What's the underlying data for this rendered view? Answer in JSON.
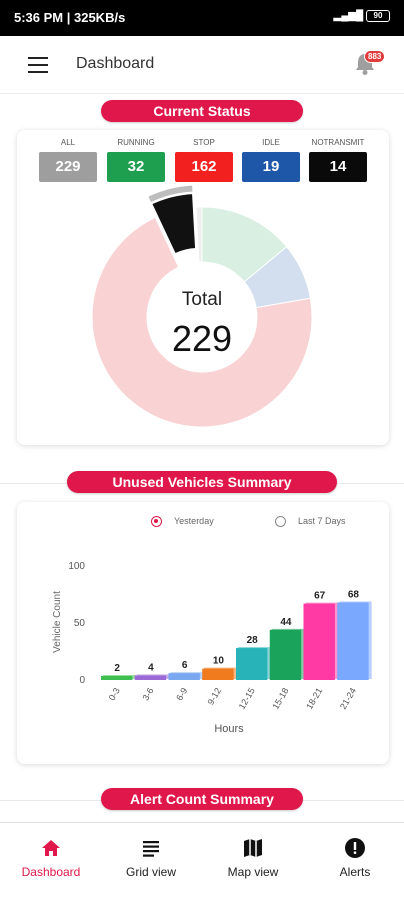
{
  "status_bar": {
    "time": "5:36 PM | 325KB/s",
    "battery": "90"
  },
  "app_bar": {
    "title": "Dashboard",
    "notification_count": "883"
  },
  "current_status": {
    "title": "Current Status",
    "statuses": [
      {
        "key": "all",
        "label": "ALL",
        "value": "229",
        "color": "#9e9e9e"
      },
      {
        "key": "running",
        "label": "RUNNING",
        "value": "32",
        "color": "#1e9e4f"
      },
      {
        "key": "stop",
        "label": "STOP",
        "value": "162",
        "color": "#f2201f"
      },
      {
        "key": "idle",
        "label": "IDLE",
        "value": "19",
        "color": "#1e56a8"
      },
      {
        "key": "notransmit",
        "label": "NOTRANSMIT",
        "value": "14",
        "color": "#0a0a0a"
      }
    ],
    "donut": {
      "total_label": "Total",
      "total_value": "229",
      "segments": [
        {
          "name": "RUNNING",
          "value": 32,
          "color": "#d8efe2",
          "selected": false
        },
        {
          "name": "IDLE",
          "value": 19,
          "color": "#d3dfee",
          "selected": false
        },
        {
          "name": "STOP",
          "value": 162,
          "color": "#f9d3d3",
          "selected": false
        },
        {
          "name": "NOTRANSMIT",
          "value": 14,
          "color": "#111111",
          "selected": true
        },
        {
          "name": "OTHER",
          "value": 2,
          "color": "#eeeeee",
          "selected": false
        }
      ]
    }
  },
  "unused_vehicles": {
    "title": "Unused Vehicles Summary",
    "filters": [
      {
        "label": "Yesterday",
        "selected": true
      },
      {
        "label": "Last 7 Days",
        "selected": false
      }
    ],
    "chart_data": {
      "type": "bar",
      "categories": [
        "0-3",
        "3-6",
        "6-9",
        "9-12",
        "12-15",
        "15-18",
        "18-21",
        "21-24"
      ],
      "values": [
        2,
        4,
        6,
        10,
        28,
        44,
        67,
        68
      ],
      "colors": [
        "#3fbf4f",
        "#9b6ad6",
        "#7aa8f0",
        "#f07a1e",
        "#28b3b8",
        "#1aa35a",
        "#ff3aa5",
        "#7aa8ff"
      ],
      "xlabel": "Hours",
      "ylabel": "Vehicle Count",
      "ylim": [
        0,
        100
      ],
      "yticks": [
        "0",
        "50",
        "100"
      ]
    }
  },
  "alert_count": {
    "title": "Alert Count Summary"
  },
  "bottom_nav": [
    {
      "key": "dashboard",
      "label": "Dashboard",
      "icon": "home-icon",
      "active": true
    },
    {
      "key": "grid",
      "label": "Grid view",
      "icon": "list-icon",
      "active": false
    },
    {
      "key": "map",
      "label": "Map view",
      "icon": "map-icon",
      "active": false
    },
    {
      "key": "alerts",
      "label": "Alerts",
      "icon": "alert-icon",
      "active": false
    }
  ]
}
